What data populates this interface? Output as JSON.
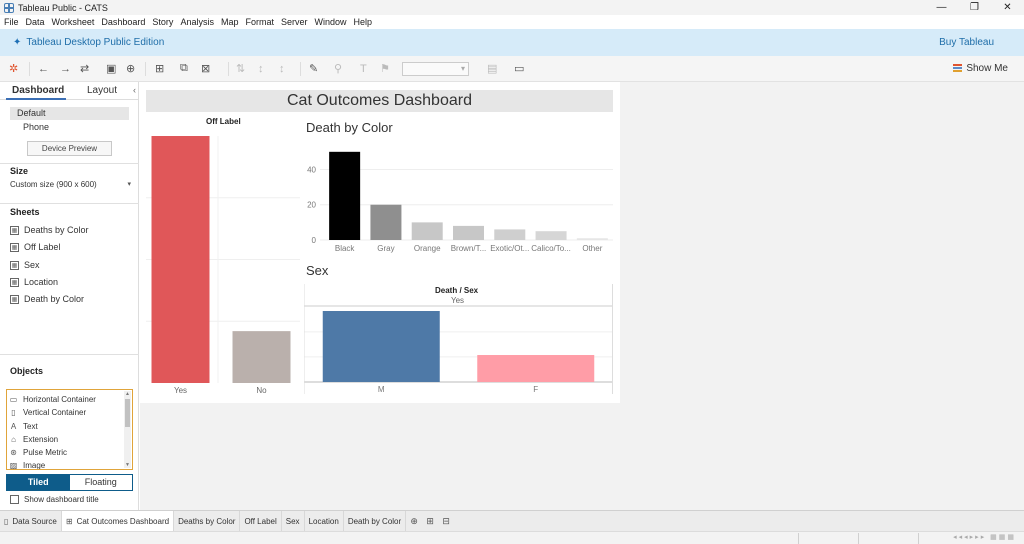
{
  "window": {
    "title": "Tableau Public - CATS"
  },
  "menu": [
    "File",
    "Data",
    "Worksheet",
    "Dashboard",
    "Story",
    "Analysis",
    "Map",
    "Format",
    "Server",
    "Window",
    "Help"
  ],
  "edition_bar": {
    "name": "Tableau Desktop Public Edition",
    "buy": "Buy Tableau"
  },
  "toolbar": {
    "show_me": "Show Me"
  },
  "left_panel": {
    "tabs": [
      "Dashboard",
      "Layout"
    ],
    "devices": [
      "Default",
      "Phone"
    ],
    "device_preview": "Device Preview",
    "size_label": "Size",
    "size_value": "Custom size (900 x 600)",
    "sheets_label": "Sheets",
    "sheets": [
      "Deaths by Color",
      "Off Label",
      "Sex",
      "Location",
      "Death by Color"
    ],
    "objects_label": "Objects",
    "objects": [
      "Horizontal Container",
      "Vertical Container",
      "Text",
      "Extension",
      "Pulse Metric",
      "Image"
    ],
    "tiled": "Tiled",
    "floating": "Floating",
    "show_title": "Show dashboard title"
  },
  "dashboard": {
    "title": "Cat Outcomes Dashboard"
  },
  "chart_data": [
    {
      "type": "bar",
      "title": "Off Label",
      "categories": [
        "Yes",
        "No"
      ],
      "values": [
        100,
        21
      ],
      "colors": [
        "#e05759",
        "#bab0ac"
      ]
    },
    {
      "type": "bar",
      "title": "Death by Color",
      "categories": [
        "Black",
        "Gray",
        "Orange",
        "Brown/T...",
        "Exotic/Ot...",
        "Calico/To...",
        "Other"
      ],
      "values": [
        50,
        20,
        10,
        8,
        6,
        5,
        1
      ],
      "yticks": [
        0,
        20,
        40
      ],
      "ylim": [
        0,
        55
      ],
      "colors": [
        "#000000",
        "#8f8f8f",
        "#c7c7c7",
        "#c7c7c7",
        "#cfcfcf",
        "#d6d6d6",
        "#e6e6e6"
      ]
    },
    {
      "type": "bar",
      "title": "Sex",
      "header": "Death / Sex",
      "subheader": "Yes",
      "categories": [
        "M",
        "F"
      ],
      "values": [
        100,
        38
      ],
      "colors": [
        "#4e79a7",
        "#ff9da7"
      ]
    }
  ],
  "tabs_bar": {
    "data_source": "Data Source",
    "tabs": [
      "Cat Outcomes Dashboard",
      "Deaths by Color",
      "Off Label",
      "Sex",
      "Location",
      "Death by Color"
    ]
  }
}
